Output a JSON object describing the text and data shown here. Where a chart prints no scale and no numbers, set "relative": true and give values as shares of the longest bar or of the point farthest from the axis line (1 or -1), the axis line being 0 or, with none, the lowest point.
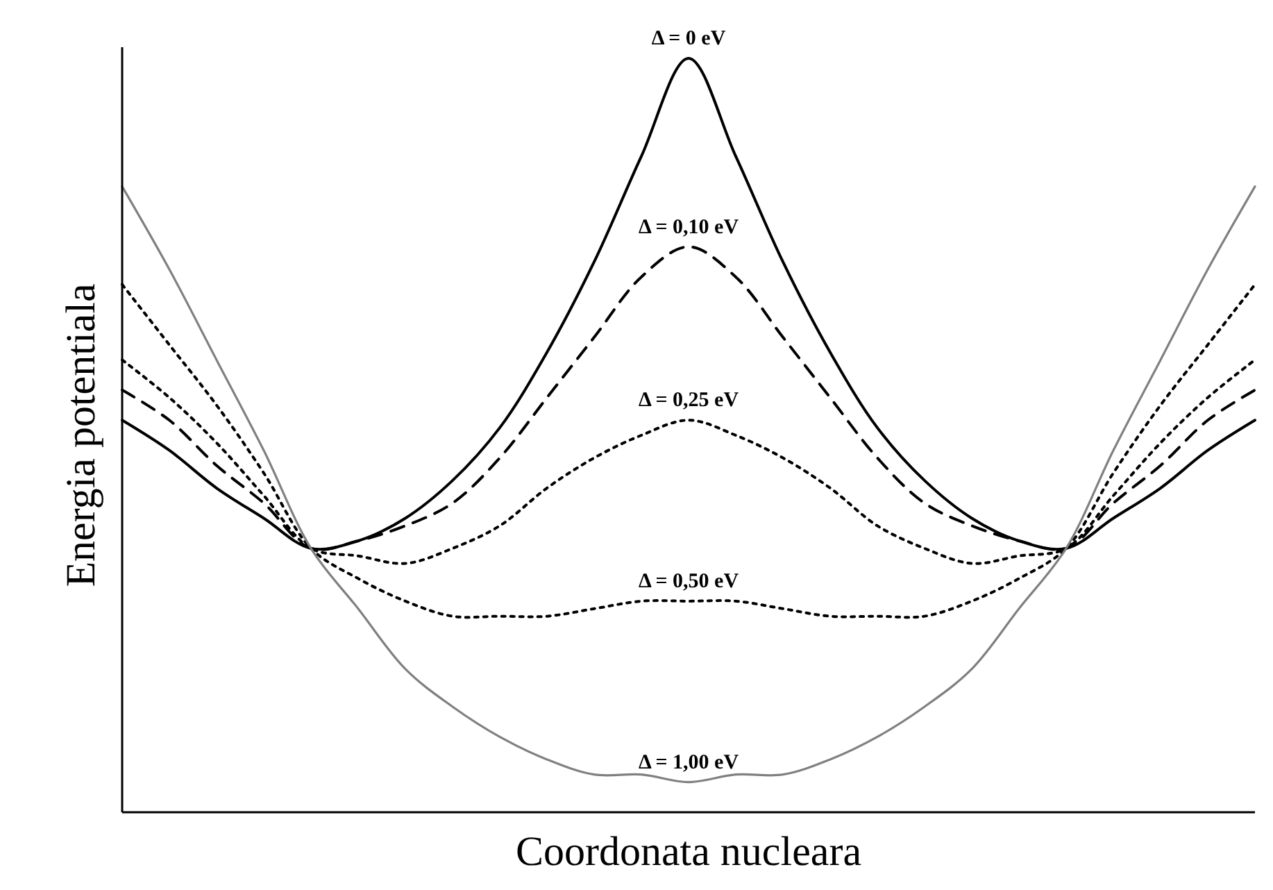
{
  "chart_data": {
    "type": "line",
    "relative": true,
    "xlabel": "Coordonata nucleara",
    "ylabel": "Energia potentiala",
    "categories": [
      null,
      null,
      null,
      null,
      null,
      null,
      null,
      null,
      null,
      null,
      null,
      null,
      null,
      null,
      null,
      null,
      null,
      null,
      null,
      null,
      null,
      null,
      null,
      null,
      null
    ],
    "series": [
      {
        "name": "Δ = 0 eV",
        "color": "#000000",
        "line_style": "solid",
        "values": [
          0.52,
          0.48,
          0.43,
          0.39,
          0.35,
          0.36,
          0.39,
          0.44,
          0.51,
          0.61,
          0.73,
          0.87,
          1.0,
          0.87,
          0.73,
          0.61,
          0.51,
          0.44,
          0.39,
          0.36,
          0.35,
          0.39,
          0.43,
          0.48,
          0.52
        ]
      },
      {
        "name": "Δ = 0,10 eV",
        "color": "#000000",
        "line_style": "dashed",
        "values": [
          0.56,
          0.52,
          0.46,
          0.41,
          0.35,
          0.36,
          0.38,
          0.41,
          0.47,
          0.55,
          0.63,
          0.71,
          0.75,
          0.71,
          0.63,
          0.55,
          0.47,
          0.41,
          0.38,
          0.36,
          0.35,
          0.41,
          0.46,
          0.52,
          0.56
        ]
      },
      {
        "name": "Δ = 0,25 eV",
        "color": "#000000",
        "line_style": "dotted",
        "values": [
          0.6,
          0.55,
          0.49,
          0.42,
          0.35,
          0.34,
          0.33,
          0.35,
          0.38,
          0.43,
          0.47,
          0.5,
          0.52,
          0.5,
          0.47,
          0.43,
          0.38,
          0.35,
          0.33,
          0.34,
          0.35,
          0.42,
          0.49,
          0.55,
          0.6
        ]
      },
      {
        "name": "Δ = 0,50 eV",
        "color": "#000000",
        "line_style": "dotted",
        "values": [
          0.7,
          0.62,
          0.54,
          0.45,
          0.35,
          0.31,
          0.28,
          0.26,
          0.26,
          0.26,
          0.27,
          0.28,
          0.28,
          0.28,
          0.27,
          0.26,
          0.26,
          0.26,
          0.28,
          0.31,
          0.35,
          0.45,
          0.54,
          0.62,
          0.7
        ]
      },
      {
        "name": "Δ = 1,00 eV",
        "color": "#808080",
        "line_style": "solid",
        "values": [
          0.83,
          0.72,
          0.6,
          0.48,
          0.35,
          0.27,
          0.19,
          0.14,
          0.1,
          0.07,
          0.05,
          0.05,
          0.04,
          0.05,
          0.05,
          0.07,
          0.1,
          0.14,
          0.19,
          0.27,
          0.35,
          0.48,
          0.6,
          0.72,
          0.83
        ]
      }
    ]
  }
}
